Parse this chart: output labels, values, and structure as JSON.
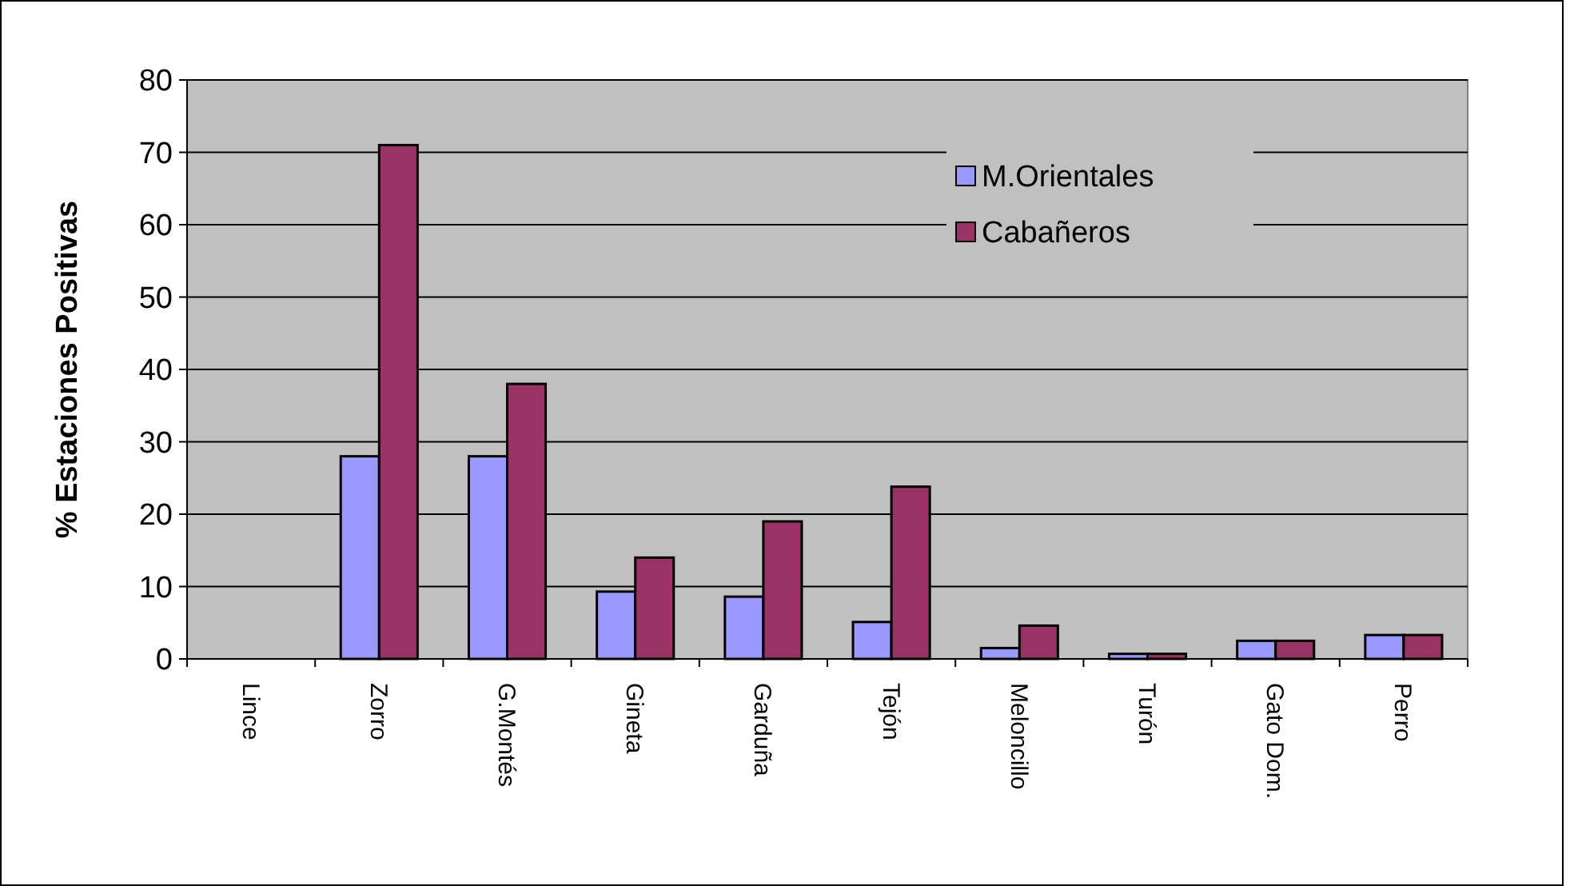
{
  "chart_data": {
    "type": "bar",
    "ylabel": "% Estaciones Positivas",
    "categories": [
      "Lince",
      "Zorro",
      "G.Montés",
      "Gineta",
      "Garduña",
      "Tejón",
      "Meloncillo",
      "Turón",
      "Gato Dom.",
      "Perro"
    ],
    "series": [
      {
        "name": "M.Orientales",
        "color": "#9999ff",
        "values": [
          0,
          28,
          28,
          9.3,
          8.6,
          5.1,
          1.5,
          0.7,
          2.5,
          3.3
        ]
      },
      {
        "name": "Cabañeros",
        "color": "#993366",
        "values": [
          0,
          71,
          38,
          14,
          19,
          23.8,
          4.6,
          0.7,
          2.5,
          3.3
        ]
      }
    ],
    "ylim": [
      0,
      80
    ],
    "yticks": [
      0,
      10,
      20,
      30,
      40,
      50,
      60,
      70,
      80
    ],
    "grid": "y",
    "legend": "top right"
  }
}
